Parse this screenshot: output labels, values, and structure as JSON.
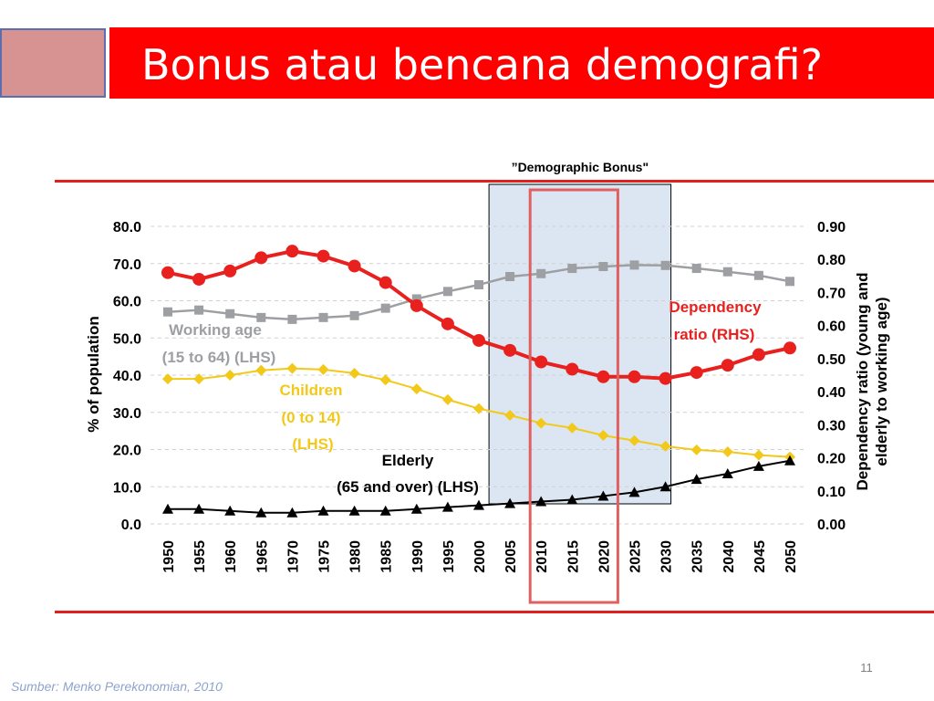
{
  "slide": {
    "title": "Bonus atau bencana demografi?",
    "page_number": "11",
    "source": "Sumber: Menko Perekonomian, 2010"
  },
  "colors": {
    "title_bar": "#ff0000",
    "rules": "#e0201f",
    "dependency": "#e8211f",
    "working_age": "#9d9fa2",
    "children": "#f2c919",
    "elderly": "#000000",
    "highlight_fill": "#dce6f2",
    "highlight_box": "#e0605f"
  },
  "chart_data": {
    "type": "line",
    "x": [
      "1950",
      "1955",
      "1960",
      "1965",
      "1970",
      "1975",
      "1980",
      "1985",
      "1990",
      "1995",
      "2000",
      "2005",
      "2010",
      "2015",
      "2020",
      "2025",
      "2030",
      "2035",
      "2040",
      "2045",
      "2050"
    ],
    "ylabel": "% of population",
    "y2label_line1": "Dependency ratio (young and",
    "y2label_line2": "elderly to working age)",
    "ylim": [
      0,
      80
    ],
    "y2lim": [
      0,
      0.9
    ],
    "yticks": [
      "0.0",
      "10.0",
      "20.0",
      "30.0",
      "40.0",
      "50.0",
      "60.0",
      "70.0",
      "80.0"
    ],
    "y2ticks": [
      "0.00",
      "0.10",
      "0.20",
      "0.30",
      "0.40",
      "0.50",
      "0.60",
      "0.70",
      "0.80",
      "0.90"
    ],
    "grid": true,
    "shaded_region": {
      "label": "”Demographic Bonus\"",
      "from": "2005",
      "to": "2030"
    },
    "highlight_box": {
      "from": "2010",
      "to": "2020"
    },
    "series": [
      {
        "key": "working",
        "axis": "left",
        "marker": "square",
        "values": [
          57.0,
          57.5,
          56.5,
          55.5,
          55.0,
          55.5,
          56.0,
          58.0,
          60.5,
          62.5,
          64.3,
          66.5,
          67.3,
          68.7,
          69.2,
          69.6,
          69.5,
          68.7,
          67.8,
          66.8,
          65.2
        ]
      },
      {
        "key": "children",
        "axis": "left",
        "marker": "diamond",
        "values": [
          39.0,
          39.0,
          40.0,
          41.3,
          41.8,
          41.5,
          40.5,
          38.7,
          36.3,
          33.4,
          31.0,
          29.2,
          27.1,
          25.8,
          23.8,
          22.4,
          20.9,
          19.9,
          19.4,
          18.5,
          18.0
        ]
      },
      {
        "key": "elderly",
        "axis": "left",
        "marker": "triangle",
        "values": [
          4.0,
          4.0,
          3.5,
          3.0,
          3.0,
          3.5,
          3.5,
          3.5,
          4.0,
          4.5,
          5.0,
          5.5,
          6.0,
          6.5,
          7.5,
          8.5,
          10.0,
          12.0,
          13.5,
          15.5,
          17.0
        ]
      },
      {
        "key": "dependency",
        "axis": "right",
        "marker": "circle",
        "values": [
          0.76,
          0.74,
          0.765,
          0.805,
          0.825,
          0.81,
          0.78,
          0.73,
          0.66,
          0.605,
          0.555,
          0.525,
          0.49,
          0.468,
          0.445,
          0.445,
          0.44,
          0.458,
          0.48,
          0.512,
          0.532
        ]
      }
    ],
    "annotations": {
      "working_line1": "Working age",
      "working_line2": "(15 to 64) (LHS)",
      "children_line1": "Children",
      "children_line2": "(0 to 14)",
      "children_line3": "(LHS)",
      "elderly_line1": "Elderly",
      "elderly_line2": "(65 and over) (LHS)",
      "dependency_line1": "Dependency",
      "dependency_line2": "ratio (RHS)"
    }
  }
}
